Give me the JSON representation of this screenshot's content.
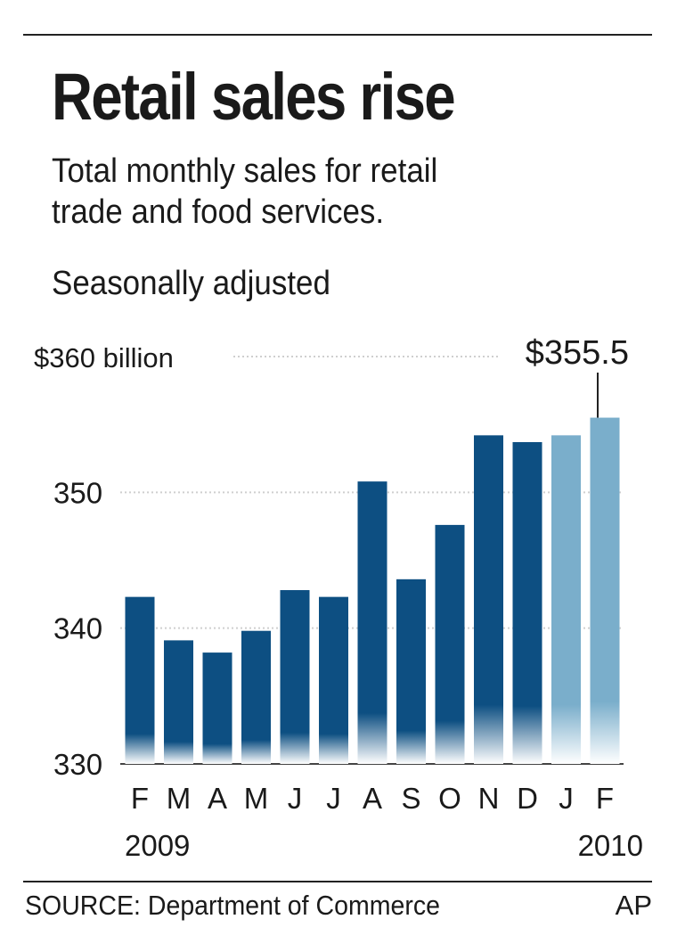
{
  "header": {
    "title": "Retail sales rise",
    "subtitle_line1": "Total monthly sales for retail",
    "subtitle_line2": "trade and food services.",
    "note": "Seasonally adjusted"
  },
  "footer": {
    "source": "SOURCE: Department of Commerce",
    "credit": "AP"
  },
  "colors": {
    "bar_2009": "#0d4f82",
    "bar_2010": "#7aaecb",
    "grid": "#cfcfcf",
    "axis": "#444444"
  },
  "chart_data": {
    "type": "bar",
    "categories": [
      "F",
      "M",
      "A",
      "M",
      "J",
      "J",
      "A",
      "S",
      "O",
      "N",
      "D",
      "J",
      "F"
    ],
    "years": [
      "2009",
      "2010"
    ],
    "values": [
      342.3,
      339.1,
      338.2,
      339.8,
      342.8,
      342.3,
      350.8,
      343.6,
      347.6,
      354.2,
      353.7,
      354.2,
      355.5
    ],
    "highlight_from_index": 11,
    "ylim": [
      330,
      360
    ],
    "yticks": [
      330,
      340,
      350,
      360
    ],
    "ytick_labels": [
      "330",
      "340",
      "350",
      "$360 billion"
    ],
    "grid": true,
    "annotation": {
      "label": "$355.5",
      "index": 12
    },
    "title": "",
    "xlabel": "",
    "ylabel": ""
  }
}
